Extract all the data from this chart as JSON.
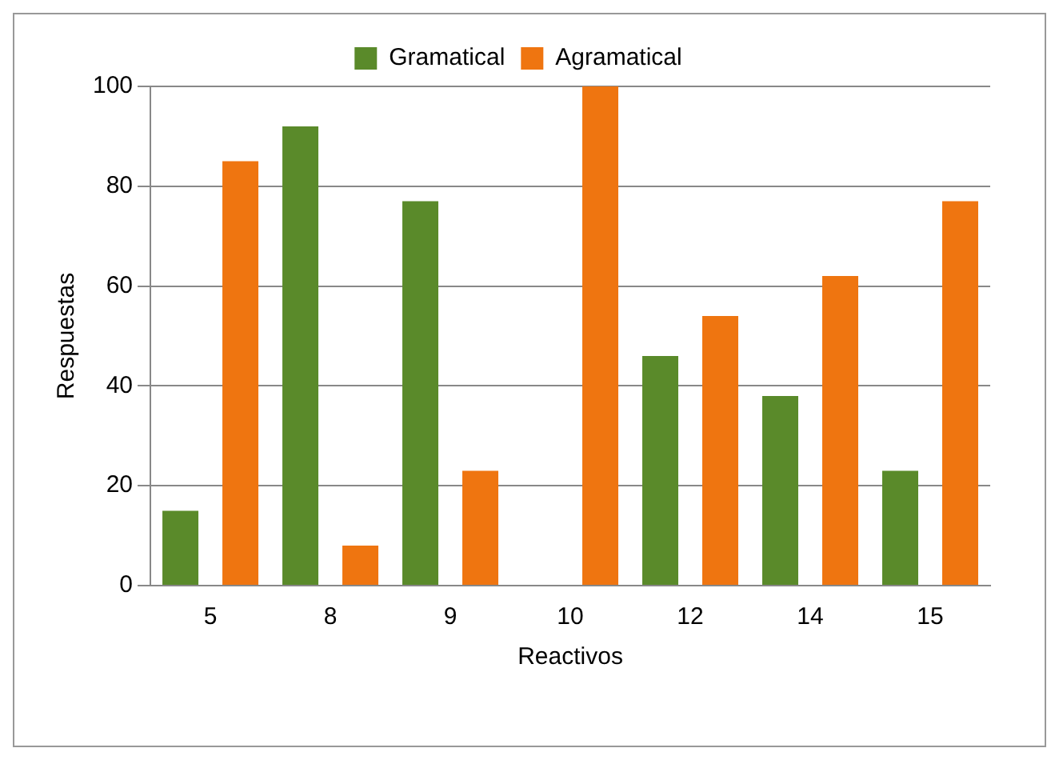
{
  "chart_data": {
    "type": "bar",
    "xlabel": "Reactivos",
    "ylabel": "Respuestas",
    "categories": [
      "5",
      "8",
      "9",
      "10",
      "12",
      "14",
      "15"
    ],
    "series": [
      {
        "name": "Gramatical",
        "color": "#5a8a2a",
        "values": [
          15,
          92,
          77,
          0,
          46,
          38,
          23
        ]
      },
      {
        "name": "Agramatical",
        "color": "#ef7510",
        "values": [
          85,
          8,
          23,
          100,
          54,
          62,
          77
        ]
      }
    ],
    "ylim": [
      0,
      100
    ],
    "yticks": [
      0,
      20,
      40,
      60,
      80,
      100
    ],
    "grid": "y",
    "legend": "top"
  }
}
